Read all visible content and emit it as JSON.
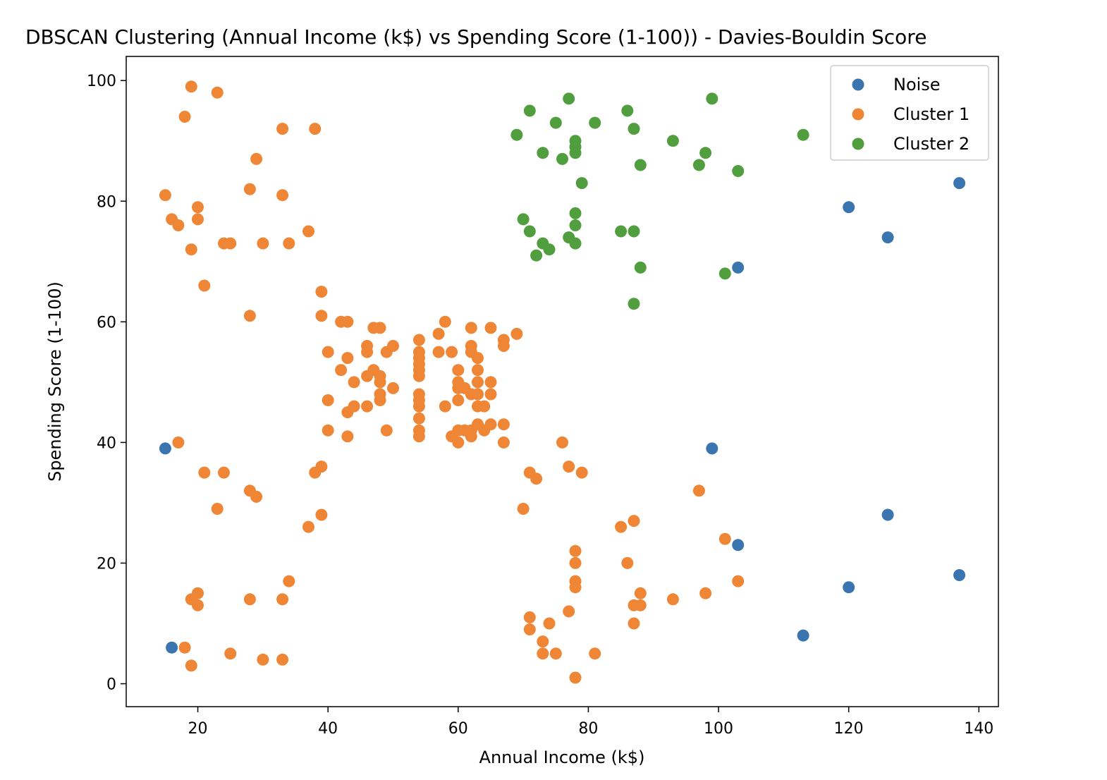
{
  "chart_data": {
    "type": "scatter",
    "title": "DBSCAN Clustering (Annual Income (k$) vs Spending Score (1-100)) - Davies-Bouldin Score",
    "xlabel": "Annual Income (k$)",
    "ylabel": "Spending Score (1-100)",
    "xlim": [
      9,
      143
    ],
    "ylim": [
      -3.8,
      104
    ],
    "xticks": [
      20,
      40,
      60,
      80,
      100,
      120,
      140
    ],
    "yticks": [
      0,
      20,
      40,
      60,
      80,
      100
    ],
    "grid": false,
    "legend_position": "top-right",
    "series": [
      {
        "name": "Noise",
        "color": "#3a75af",
        "points": [
          [
            15,
            39
          ],
          [
            16,
            6
          ],
          [
            99,
            39
          ],
          [
            103,
            69
          ],
          [
            103,
            23
          ],
          [
            113,
            8
          ],
          [
            120,
            79
          ],
          [
            120,
            16
          ],
          [
            126,
            74
          ],
          [
            126,
            28
          ],
          [
            137,
            83
          ],
          [
            137,
            18
          ]
        ]
      },
      {
        "name": "Cluster 1",
        "color": "#ef8636",
        "points": [
          [
            15,
            81
          ],
          [
            16,
            77
          ],
          [
            17,
            40
          ],
          [
            17,
            76
          ],
          [
            18,
            6
          ],
          [
            18,
            94
          ],
          [
            19,
            3
          ],
          [
            19,
            72
          ],
          [
            19,
            14
          ],
          [
            19,
            99
          ],
          [
            20,
            15
          ],
          [
            20,
            77
          ],
          [
            20,
            13
          ],
          [
            20,
            79
          ],
          [
            21,
            35
          ],
          [
            21,
            66
          ],
          [
            23,
            29
          ],
          [
            23,
            98
          ],
          [
            24,
            35
          ],
          [
            24,
            73
          ],
          [
            25,
            5
          ],
          [
            25,
            73
          ],
          [
            28,
            14
          ],
          [
            28,
            82
          ],
          [
            28,
            32
          ],
          [
            28,
            61
          ],
          [
            29,
            31
          ],
          [
            29,
            87
          ],
          [
            30,
            4
          ],
          [
            30,
            73
          ],
          [
            33,
            4
          ],
          [
            33,
            92
          ],
          [
            33,
            14
          ],
          [
            33,
            81
          ],
          [
            34,
            17
          ],
          [
            34,
            73
          ],
          [
            37,
            26
          ],
          [
            37,
            75
          ],
          [
            38,
            35
          ],
          [
            38,
            92
          ],
          [
            39,
            36
          ],
          [
            39,
            61
          ],
          [
            39,
            28
          ],
          [
            39,
            65
          ],
          [
            40,
            55
          ],
          [
            40,
            47
          ],
          [
            40,
            42
          ],
          [
            42,
            52
          ],
          [
            42,
            60
          ],
          [
            43,
            54
          ],
          [
            43,
            60
          ],
          [
            43,
            45
          ],
          [
            43,
            41
          ],
          [
            44,
            50
          ],
          [
            44,
            46
          ],
          [
            46,
            51
          ],
          [
            46,
            46
          ],
          [
            46,
            56
          ],
          [
            46,
            55
          ],
          [
            47,
            52
          ],
          [
            47,
            59
          ],
          [
            48,
            51
          ],
          [
            48,
            59
          ],
          [
            48,
            50
          ],
          [
            48,
            48
          ],
          [
            48,
            47
          ],
          [
            49,
            55
          ],
          [
            49,
            42
          ],
          [
            50,
            49
          ],
          [
            50,
            56
          ],
          [
            54,
            47
          ],
          [
            54,
            54
          ],
          [
            54,
            53
          ],
          [
            54,
            48
          ],
          [
            54,
            52
          ],
          [
            54,
            42
          ],
          [
            54,
            51
          ],
          [
            54,
            55
          ],
          [
            54,
            41
          ],
          [
            54,
            44
          ],
          [
            54,
            57
          ],
          [
            54,
            46
          ],
          [
            57,
            58
          ],
          [
            57,
            55
          ],
          [
            58,
            60
          ],
          [
            58,
            46
          ],
          [
            59,
            55
          ],
          [
            59,
            41
          ],
          [
            60,
            49
          ],
          [
            60,
            40
          ],
          [
            60,
            42
          ],
          [
            60,
            52
          ],
          [
            60,
            47
          ],
          [
            60,
            50
          ],
          [
            61,
            42
          ],
          [
            61,
            49
          ],
          [
            62,
            41
          ],
          [
            62,
            48
          ],
          [
            62,
            59
          ],
          [
            62,
            55
          ],
          [
            62,
            56
          ],
          [
            62,
            42
          ],
          [
            63,
            50
          ],
          [
            63,
            46
          ],
          [
            63,
            43
          ],
          [
            63,
            48
          ],
          [
            63,
            52
          ],
          [
            63,
            54
          ],
          [
            64,
            42
          ],
          [
            64,
            46
          ],
          [
            65,
            48
          ],
          [
            65,
            50
          ],
          [
            65,
            43
          ],
          [
            65,
            59
          ],
          [
            67,
            43
          ],
          [
            67,
            57
          ],
          [
            67,
            56
          ],
          [
            67,
            40
          ],
          [
            69,
            58
          ],
          [
            70,
            29
          ],
          [
            71,
            35
          ],
          [
            71,
            11
          ],
          [
            71,
            9
          ],
          [
            72,
            34
          ],
          [
            73,
            5
          ],
          [
            73,
            7
          ],
          [
            74,
            10
          ],
          [
            75,
            5
          ],
          [
            76,
            40
          ],
          [
            77,
            12
          ],
          [
            77,
            36
          ],
          [
            78,
            22
          ],
          [
            78,
            17
          ],
          [
            78,
            20
          ],
          [
            78,
            16
          ],
          [
            78,
            1
          ],
          [
            79,
            35
          ],
          [
            81,
            5
          ],
          [
            85,
            26
          ],
          [
            86,
            20
          ],
          [
            87,
            27
          ],
          [
            87,
            13
          ],
          [
            87,
            10
          ],
          [
            88,
            13
          ],
          [
            88,
            15
          ],
          [
            93,
            14
          ],
          [
            97,
            32
          ],
          [
            98,
            15
          ],
          [
            101,
            24
          ],
          [
            103,
            17
          ]
        ]
      },
      {
        "name": "Cluster 2",
        "color": "#519e3e",
        "points": [
          [
            69,
            91
          ],
          [
            70,
            77
          ],
          [
            71,
            95
          ],
          [
            71,
            75
          ],
          [
            72,
            71
          ],
          [
            73,
            88
          ],
          [
            73,
            73
          ],
          [
            74,
            72
          ],
          [
            75,
            93
          ],
          [
            76,
            87
          ],
          [
            77,
            97
          ],
          [
            77,
            74
          ],
          [
            78,
            90
          ],
          [
            78,
            89
          ],
          [
            78,
            88
          ],
          [
            78,
            78
          ],
          [
            78,
            76
          ],
          [
            78,
            73
          ],
          [
            79,
            83
          ],
          [
            81,
            93
          ],
          [
            85,
            75
          ],
          [
            86,
            95
          ],
          [
            87,
            92
          ],
          [
            87,
            75
          ],
          [
            87,
            63
          ],
          [
            88,
            86
          ],
          [
            88,
            69
          ],
          [
            93,
            90
          ],
          [
            97,
            86
          ],
          [
            98,
            88
          ],
          [
            99,
            97
          ],
          [
            101,
            68
          ],
          [
            103,
            85
          ],
          [
            113,
            91
          ]
        ]
      }
    ]
  }
}
